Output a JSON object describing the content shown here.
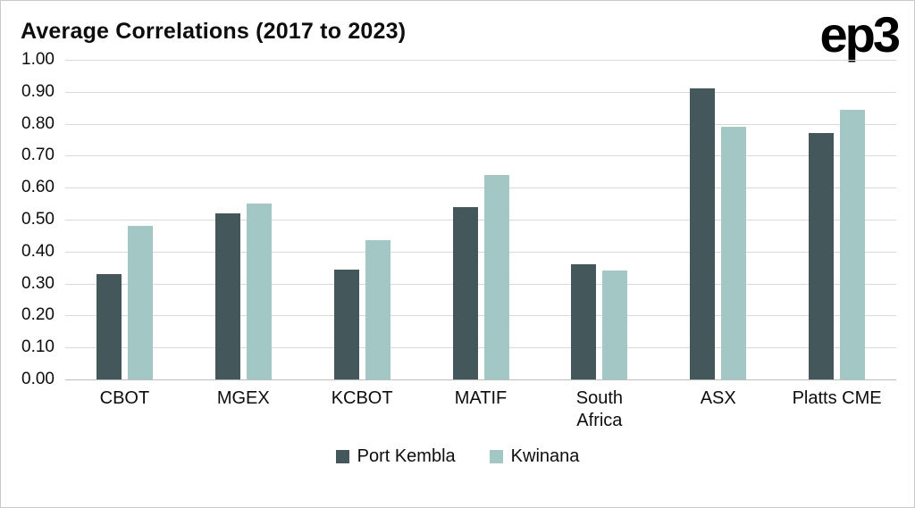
{
  "header": {
    "title": "Average Correlations (2017 to 2023)",
    "logo": "ep3"
  },
  "chart_data": {
    "type": "bar",
    "title": "Average Correlations (2017 to 2023)",
    "categories": [
      "CBOT",
      "MGEX",
      "KCBOT",
      "MATIF",
      "South\nAfrica",
      "ASX",
      "Platts CME"
    ],
    "series": [
      {
        "name": "Port Kembla",
        "color": "#44585c",
        "values": [
          0.33,
          0.52,
          0.345,
          0.54,
          0.36,
          0.91,
          0.77
        ]
      },
      {
        "name": "Kwinana",
        "color": "#a2c7c5",
        "values": [
          0.48,
          0.55,
          0.435,
          0.64,
          0.34,
          0.79,
          0.845
        ]
      }
    ],
    "xlabel": "",
    "ylabel": "",
    "ylim": [
      0,
      1.0
    ],
    "ytick_step": 0.1,
    "ytick_labels": [
      "0.00",
      "0.10",
      "0.20",
      "0.30",
      "0.40",
      "0.50",
      "0.60",
      "0.70",
      "0.80",
      "0.90",
      "1.00"
    ],
    "grid": true,
    "legend_position": "bottom"
  }
}
